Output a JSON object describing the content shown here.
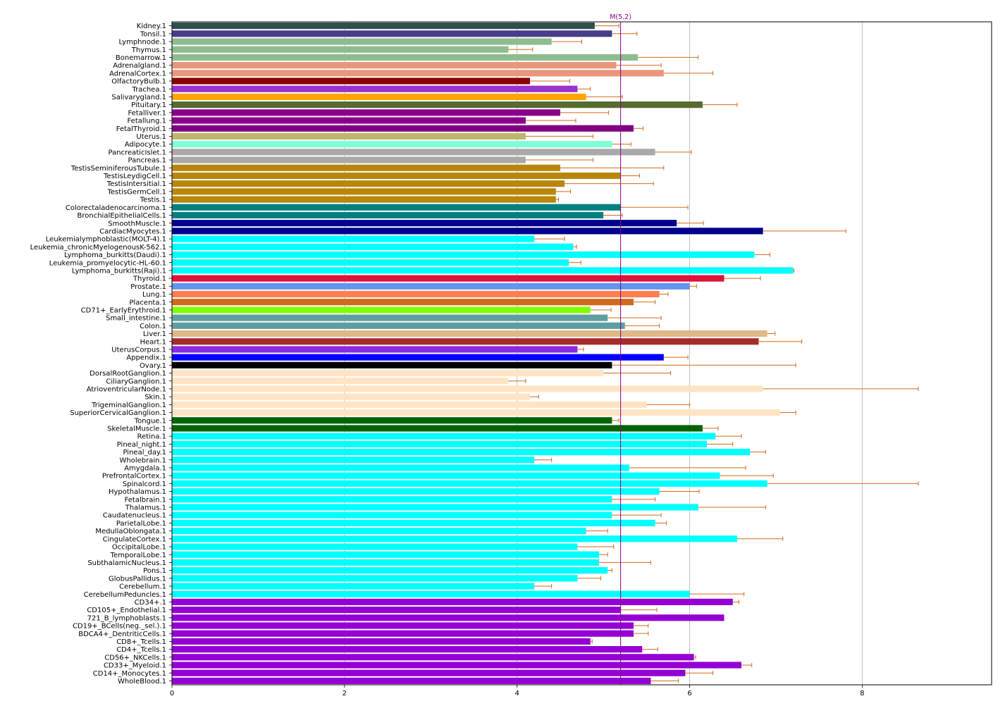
{
  "chart_data": {
    "type": "bar",
    "orientation": "horizontal",
    "title": "",
    "xlabel": "",
    "ylabel": "",
    "xlim": [
      0,
      9.5
    ],
    "xticks": [
      0,
      2,
      4,
      6,
      8
    ],
    "grid": "vertical",
    "errorbar_color": "#d2691e",
    "reference_line": {
      "label": "M(5.2)",
      "value": 5.2,
      "color": "#8b008b"
    },
    "categories": [
      "Kidney.1",
      "Tonsil.1",
      "Lymphnode.1",
      "Thymus.1",
      "Bonemarrow.1",
      "Adrenalgland.1",
      "AdrenalCortex.1",
      "OlfactoryBulb.1",
      "Trachea.1",
      "Salivarygland.1",
      "Pituitary.1",
      "Fetalliver.1",
      "Fetallung.1",
      "FetalThyroid.1",
      "Uterus.1",
      "Adipocyte.1",
      "PancreaticIslet.1",
      "Pancreas.1",
      "TestisSeminiferousTubule.1",
      "TestisLeydigCell.1",
      "TestisIntersitial.1",
      "TestisGermCell.1",
      "Testis.1",
      "Colorectaladenocarcinoma.1",
      "BronchialEpithelialCells.1",
      "SmoothMuscle.1",
      "CardiacMyocytes.1",
      "Leukemialymphoblastic(MOLT-4).1",
      "Leukemia_chronicMyelogenousK-562.1",
      "Lymphoma_burkitts(Daudi).1",
      "Leukemia_promyelocytic-HL-60.1",
      "Lymphoma_burkitts(Raji).1",
      "Thyroid.1",
      "Prostate.1",
      "Lung.1",
      "Placenta.1",
      "CD71+_EarlyErythroid.1",
      "Small_intestine.1",
      "Colon.1",
      "Liver.1",
      "Heart.1",
      "UterusCorpus.1",
      "Appendix.1",
      "Ovary.1",
      "DorsalRootGanglion.1",
      "CiliaryGanglion.1",
      "AtrioventricularNode.1",
      "Skin.1",
      "TrigeminalGanglion.1",
      "SuperiorCervicalGanglion.1",
      "Tongue.1",
      "SkeletalMuscle.1",
      "Retina.1",
      "Pineal_night.1",
      "Pineal_day.1",
      "Wholebrain.1",
      "Amygdala.1",
      "PrefrontalCortex.1",
      "Spinalcord.1",
      "Hypothalamus.1",
      "Fetalbrain.1",
      "Thalamus.1",
      "Caudatenucleus.1",
      "ParietalLobe.1",
      "MedullaOblongata.1",
      "CingulateCortex.1",
      "OccipitalLobe.1",
      "TemporalLobe.1",
      "SubthalamicNucleus.1",
      "Pons.1",
      "GlobusPallidus.1",
      "Cerebellum.1",
      "CerebellumPeduncles.1",
      "CD34+.1",
      "CD105+_Endothelial.1",
      "721_B_lymphoblasts.1",
      "CD19+_BCells(neg._sel.).1",
      "BDCA4+_DentriticCells.1",
      "CD8+_Tcells.1",
      "CD4+_Tcells.1",
      "CD56+_NKCells.1",
      "CD33+_Myeloid.1",
      "CD14+_Monocytes.1",
      "WholeBlood.1"
    ],
    "values": [
      4.9,
      5.1,
      4.4,
      3.9,
      5.4,
      5.15,
      5.7,
      4.15,
      4.7,
      4.8,
      6.15,
      4.5,
      4.1,
      5.35,
      4.1,
      5.1,
      5.6,
      4.1,
      4.5,
      5.2,
      4.55,
      4.45,
      4.45,
      5.2,
      5.0,
      5.85,
      6.85,
      4.2,
      4.65,
      6.75,
      4.6,
      7.2,
      6.4,
      6.0,
      5.65,
      5.35,
      4.85,
      5.05,
      5.25,
      6.9,
      6.8,
      4.7,
      5.7,
      5.1,
      5.0,
      3.9,
      6.85,
      4.15,
      5.5,
      7.05,
      5.1,
      6.15,
      6.3,
      6.2,
      6.7,
      4.2,
      5.3,
      6.35,
      6.9,
      5.65,
      5.1,
      6.1,
      5.1,
      5.6,
      4.8,
      6.55,
      4.7,
      4.95,
      4.95,
      5.05,
      4.7,
      4.2,
      6.0,
      6.5,
      5.2,
      6.4,
      5.35,
      5.35,
      4.85,
      5.45,
      6.05,
      6.6,
      5.95,
      5.55
    ],
    "errors": [
      0.28,
      0.29,
      0.35,
      0.28,
      0.7,
      0.52,
      0.57,
      0.46,
      0.15,
      0.42,
      0.4,
      0.56,
      0.58,
      0.11,
      0.78,
      0.22,
      0.42,
      0.78,
      1.2,
      0.22,
      1.03,
      0.17,
      0.03,
      0.78,
      0.22,
      0.31,
      0.96,
      0.35,
      0.04,
      0.18,
      0.14,
      0.01,
      0.42,
      0.08,
      0.1,
      0.25,
      0.24,
      0.62,
      0.4,
      0.09,
      0.5,
      0.07,
      0.28,
      2.13,
      0.78,
      0.2,
      1.8,
      0.1,
      0.5,
      0.18,
      0.08,
      0.18,
      0.3,
      0.3,
      0.18,
      0.2,
      1.35,
      0.62,
      1.75,
      0.46,
      0.5,
      0.78,
      0.57,
      0.13,
      0.25,
      0.53,
      0.42,
      0.1,
      0.6,
      0.05,
      0.27,
      0.2,
      0.63,
      0.07,
      0.42,
      0.0,
      0.17,
      0.17,
      0.02,
      0.18,
      0.02,
      0.12,
      0.32,
      0.32
    ],
    "colors": [
      "#2f4f4f",
      "#483d8b",
      "#8fbc8f",
      "#8fbc8f",
      "#8fbc8f",
      "#e9967a",
      "#e9967a",
      "#8b0000",
      "#9932cc",
      "#ffa500",
      "#556b2f",
      "#8b008b",
      "#8b008b",
      "#800080",
      "#bdb76b",
      "#7fffd4",
      "#a9a9a9",
      "#a9a9a9",
      "#b8860b",
      "#b8860b",
      "#b8860b",
      "#b8860b",
      "#b8860b",
      "#008080",
      "#008080",
      "#00008b",
      "#00008b",
      "#00ffff",
      "#00ffff",
      "#00ffff",
      "#00ffff",
      "#00ffff",
      "#dc143c",
      "#6495ed",
      "#ff7f50",
      "#d2691e",
      "#7fff00",
      "#5f9ea0",
      "#5f9ea0",
      "#deb887",
      "#a52a2a",
      "#8a2be2",
      "#0000ff",
      "#000000",
      "#ffe4c4",
      "#ffe4c4",
      "#ffe4c4",
      "#ffe4c4",
      "#ffe4c4",
      "#ffe4c4",
      "#006400",
      "#006400",
      "#00ffff",
      "#00ffff",
      "#00ffff",
      "#00ffff",
      "#00ffff",
      "#00ffff",
      "#00ffff",
      "#00ffff",
      "#00ffff",
      "#00ffff",
      "#00ffff",
      "#00ffff",
      "#00ffff",
      "#00ffff",
      "#00ffff",
      "#00ffff",
      "#00ffff",
      "#00ffff",
      "#00ffff",
      "#00ffff",
      "#00ffff",
      "#9400d3",
      "#9400d3",
      "#9400d3",
      "#9400d3",
      "#9400d3",
      "#9400d3",
      "#9400d3",
      "#9400d3",
      "#9400d3",
      "#9400d3",
      "#9400d3"
    ]
  }
}
